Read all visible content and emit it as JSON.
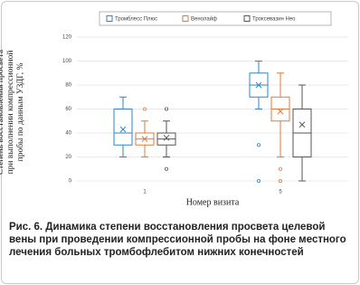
{
  "chart_data": {
    "type": "box",
    "y_label": "Степень восстановления просвета при выполнении компрессионной пробы по данным УЗДГ, %",
    "x_label": "Номер визита",
    "caption": "Рис. 6. Динамика степени восстановления просвета целевой вены при проведении компрессионной пробы на фоне местного лечения больных тромбофлебитом нижних конечностей",
    "categories": [
      "1",
      "5"
    ],
    "ylim": [
      0,
      120
    ],
    "yticks": [
      0,
      20,
      40,
      60,
      80,
      100,
      120
    ],
    "grid": true,
    "series": [
      {
        "name": "Тромблесс Плюс",
        "color": "#2e86c8",
        "boxes": [
          {
            "min": 20,
            "q1": 30,
            "median": 40,
            "q3": 60,
            "max": 70,
            "mean": 43,
            "outliers": []
          },
          {
            "min": 60,
            "q1": 70,
            "median": 80,
            "q3": 90,
            "max": 100,
            "mean": 80,
            "outliers": [
              30,
              0
            ]
          }
        ]
      },
      {
        "name": "Венолайф",
        "color": "#e07b39",
        "boxes": [
          {
            "min": 20,
            "q1": 30,
            "median": 35,
            "q3": 40,
            "max": 50,
            "mean": 35,
            "outliers": [
              60
            ]
          },
          {
            "min": 20,
            "q1": 50,
            "median": 60,
            "q3": 70,
            "max": 90,
            "mean": 58,
            "outliers": [
              10,
              0
            ]
          }
        ]
      },
      {
        "name": "Троксевазин Нео",
        "color": "#555555",
        "boxes": [
          {
            "min": 20,
            "q1": 30,
            "median": 35,
            "q3": 40,
            "max": 50,
            "mean": 36,
            "outliers": [
              60,
              10
            ]
          },
          {
            "min": 0,
            "q1": 20,
            "median": 40,
            "q3": 60,
            "max": 80,
            "mean": 47,
            "outliers": []
          }
        ]
      }
    ]
  }
}
